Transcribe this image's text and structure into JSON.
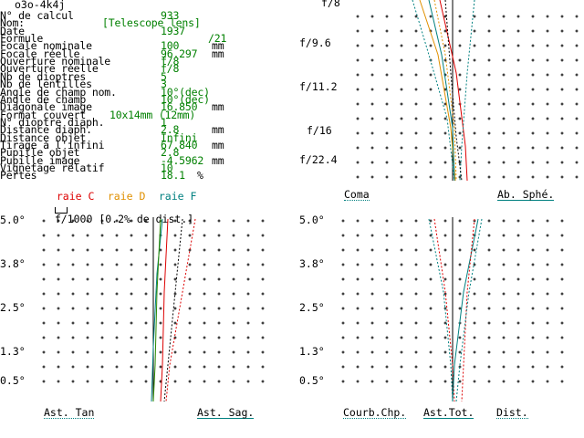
{
  "window_title": "o3o-4k4j",
  "info": [
    {
      "label": "N° de calcul",
      "value": "933"
    },
    {
      "label": "Nom:",
      "value": "[Telescope lens]"
    },
    {
      "label": "Date",
      "value": "1937"
    },
    {
      "label": "Formule",
      "value": "/21"
    },
    {
      "label": "Focale nominale",
      "value": "100",
      "unit": "mm"
    },
    {
      "label": "Focale réelle",
      "value": "96.297",
      "unit": "mm"
    },
    {
      "label": "Ouverture nominale",
      "value": "f/8"
    },
    {
      "label": "Ouverture réelle",
      "value": "f/8"
    },
    {
      "label": "Nb de dioptres",
      "value": "5"
    },
    {
      "label": "Nb de lentilles",
      "value": "3"
    },
    {
      "label": "Angle de champ nom.",
      "value": "10°(dec)"
    },
    {
      "label": "Angle de champ",
      "value": "10°(dec)"
    },
    {
      "label": "Diagonale image",
      "value": "16.850",
      "unit": "mm"
    },
    {
      "label": "Format couvert",
      "value": "10x14mm (12mm)"
    },
    {
      "label": "N° dioptre diaph.",
      "value": "1"
    },
    {
      "label": "Distance diaph.",
      "value": "2.8",
      "unit": "mm"
    },
    {
      "label": "Distance objet",
      "value": "Infini"
    },
    {
      "label": "Tirage à l'infini",
      "value": "67.840",
      "unit": "mm"
    },
    {
      "label": "Pupille objet",
      "value": "2.8"
    },
    {
      "label": "Pupille image",
      "value": "-4.5962",
      "unit": "mm"
    },
    {
      "label": "Vignetage relatif",
      "value": "10"
    },
    {
      "label": "Pertes",
      "value": "18.1",
      "unit": "%"
    }
  ],
  "raies": {
    "c_label": "raie C",
    "d_label": "raie D",
    "f_label": "raie F",
    "c_color": "#dd0000",
    "d_color": "#e09000",
    "f_color": "#008080"
  },
  "scale_label": "f/1000 [0.2% de dist.]",
  "top_right": {
    "y_ticks": [
      "f/8",
      "f/9.6",
      "f/11.2",
      "f/16",
      "f/22.4"
    ],
    "buttons": {
      "coma": "Coma",
      "ab_sphe": "Ab. Sphé."
    }
  },
  "bottom_left": {
    "y_ticks": [
      "5.0°",
      "3.8°",
      "2.5°",
      "1.3°",
      "0.5°"
    ],
    "buttons": {
      "ast_tan": "Ast. Tan",
      "ast_sag": "Ast. Sag."
    }
  },
  "bottom_right": {
    "y_ticks": [
      "5.0°",
      "3.8°",
      "2.5°",
      "1.3°",
      "0.5°"
    ],
    "buttons": {
      "courb": "Courb.Chp.",
      "ast_tot": "Ast.Tot.",
      "dist": "Dist."
    }
  },
  "colors": {
    "value_green": "#008000",
    "accent_teal": "#008080",
    "red": "#dd0000",
    "orange": "#e09000"
  }
}
